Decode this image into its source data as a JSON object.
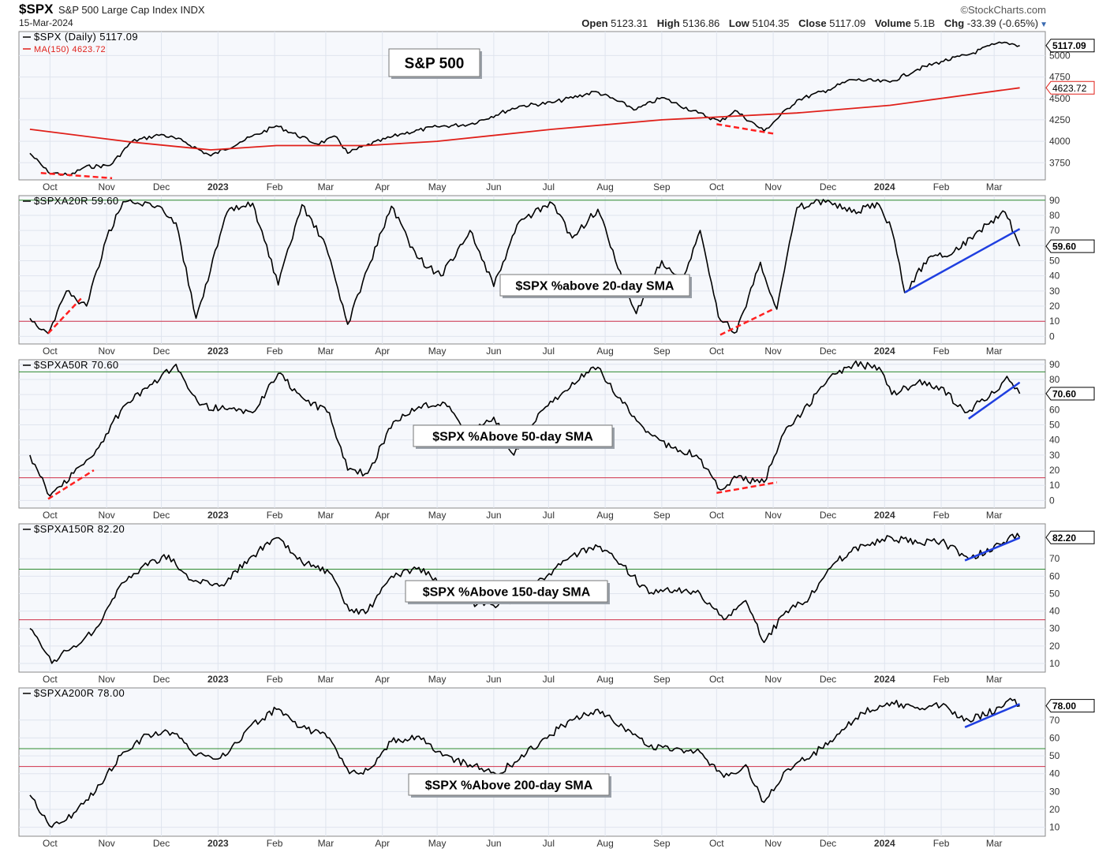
{
  "header": {
    "symbol": "$SPX",
    "name": "S&P 500 Large Cap Index",
    "exchange": "INDX",
    "date": "15-Mar-2024",
    "brand": "©StockCharts.com",
    "open_label": "Open",
    "open": "5123.31",
    "high_label": "High",
    "high": "5136.86",
    "low_label": "Low",
    "low": "5104.35",
    "close_label": "Close",
    "close": "5117.09",
    "volume_label": "Volume",
    "volume": "5.1B",
    "chg_label": "Chg",
    "chg": "-33.39 (-0.65%)"
  },
  "colors": {
    "price_line": "#000000",
    "ma_line": "#e0201a",
    "upper_ref": "#2e8b2e",
    "lower_ref": "#d0304a",
    "annotation_red": "#ff2020",
    "annotation_blue": "#1f3fe0",
    "panel_bg": "#f6f8fc",
    "grid": "#dfe4ee"
  },
  "x_months": [
    "Oct",
    "Nov",
    "Dec",
    "2023",
    "Feb",
    "Mar",
    "Apr",
    "May",
    "Jun",
    "Jul",
    "Aug",
    "Sep",
    "Oct",
    "Nov",
    "Dec",
    "2024",
    "Feb",
    "Mar"
  ],
  "x_month_bold": [
    false,
    false,
    false,
    true,
    false,
    false,
    false,
    false,
    false,
    false,
    false,
    false,
    false,
    false,
    false,
    true,
    false,
    false
  ],
  "chart_data": [
    {
      "type": "line",
      "panel": "price",
      "legend": [
        "$SPX (Daily) 5117.09",
        "MA(150) 4623.72"
      ],
      "annotation": "S&P 500",
      "ylim": [
        3550,
        5280
      ],
      "y_ticks": [
        3750,
        4000,
        4250,
        4500,
        4750,
        5000
      ],
      "y_tick_labels": [
        "3750",
        "4000",
        "4250",
        "4500",
        "4750",
        "5000"
      ],
      "last_value_labels": [
        "5117.09",
        "4623.72"
      ],
      "grid": true,
      "series": [
        {
          "name": "$SPX (Daily)",
          "x": [
            "2022-09-20",
            "2022-09-30",
            "2022-10-12",
            "2022-10-20",
            "2022-11-03",
            "2022-11-15",
            "2022-12-01",
            "2022-12-13",
            "2022-12-28",
            "2023-01-13",
            "2023-02-02",
            "2023-02-24",
            "2023-03-07",
            "2023-03-13",
            "2023-03-23",
            "2023-04-12",
            "2023-05-01",
            "2023-05-19",
            "2023-06-15",
            "2023-07-03",
            "2023-07-27",
            "2023-08-18",
            "2023-09-01",
            "2023-09-21",
            "2023-10-03",
            "2023-10-11",
            "2023-10-27",
            "2023-11-14",
            "2023-12-01",
            "2023-12-14",
            "2024-01-04",
            "2024-01-19",
            "2024-02-01",
            "2024-02-16",
            "2024-03-01",
            "2024-03-08",
            "2024-03-15"
          ],
          "values": [
            3860,
            3640,
            3600,
            3700,
            3720,
            4000,
            4080,
            4000,
            3830,
            3990,
            4180,
            3970,
            4050,
            3860,
            3950,
            4090,
            4170,
            4200,
            4410,
            4450,
            4580,
            4370,
            4510,
            4330,
            4230,
            4360,
            4120,
            4480,
            4600,
            4720,
            4690,
            4840,
            4930,
            5010,
            5130,
            5150,
            5117
          ]
        },
        {
          "name": "MA(150)",
          "x": [
            "2022-09-20",
            "2022-11-15",
            "2022-12-28",
            "2023-02-02",
            "2023-03-23",
            "2023-05-01",
            "2023-07-03",
            "2023-09-01",
            "2023-11-14",
            "2024-01-04",
            "2024-03-15"
          ],
          "values": [
            4140,
            3990,
            3900,
            3950,
            3950,
            4000,
            4140,
            4250,
            4330,
            4420,
            4624
          ]
        }
      ]
    },
    {
      "type": "line",
      "panel": "osc",
      "legend": [
        "$SPXA20R 59.60"
      ],
      "annotation": "$SPX %above 20-day SMA",
      "ylim": [
        -5,
        93
      ],
      "y_ticks": [
        0,
        10,
        20,
        30,
        40,
        50,
        60,
        70,
        80,
        90
      ],
      "y_tick_labels": [
        "0",
        "10",
        "20",
        "30",
        "40",
        "50",
        "60",
        "70",
        "80",
        "90"
      ],
      "ref_lines": [
        90,
        10
      ],
      "last_value_labels": [
        "59.60"
      ],
      "trend_lines": [
        {
          "color": "red",
          "dashed": true,
          "x": [
            "2022-09-30",
            "2022-10-18"
          ],
          "values": [
            2,
            25
          ]
        },
        {
          "color": "red",
          "dashed": true,
          "x": [
            "2023-10-03",
            "2023-11-01"
          ],
          "values": [
            1,
            18
          ]
        },
        {
          "color": "blue",
          "dashed": false,
          "x": [
            "2024-01-12",
            "2024-03-15"
          ],
          "values": [
            29,
            71
          ]
        }
      ],
      "grid": true,
      "series": [
        {
          "name": "$SPXA20R",
          "x": [
            "2022-09-20",
            "2022-09-30",
            "2022-10-10",
            "2022-10-21",
            "2022-11-01",
            "2022-11-10",
            "2022-11-30",
            "2022-12-09",
            "2022-12-20",
            "2023-01-06",
            "2023-01-20",
            "2023-02-03",
            "2023-02-16",
            "2023-03-01",
            "2023-03-13",
            "2023-03-24",
            "2023-04-06",
            "2023-04-20",
            "2023-05-03",
            "2023-05-19",
            "2023-06-01",
            "2023-06-15",
            "2023-07-03",
            "2023-07-14",
            "2023-07-28",
            "2023-08-08",
            "2023-08-18",
            "2023-09-01",
            "2023-09-12",
            "2023-09-22",
            "2023-10-02",
            "2023-10-12",
            "2023-10-25",
            "2023-11-03",
            "2023-11-14",
            "2023-12-01",
            "2023-12-14",
            "2023-12-29",
            "2024-01-05",
            "2024-01-12",
            "2024-01-25",
            "2024-02-08",
            "2024-02-22",
            "2024-03-07",
            "2024-03-15"
          ],
          "values": [
            12,
            2,
            30,
            20,
            65,
            89,
            86,
            75,
            12,
            82,
            88,
            34,
            87,
            60,
            8,
            45,
            86,
            52,
            40,
            70,
            33,
            76,
            88,
            65,
            84,
            45,
            15,
            50,
            35,
            70,
            13,
            3,
            49,
            18,
            85,
            90,
            82,
            87,
            70,
            29,
            52,
            56,
            70,
            82,
            59.6
          ]
        }
      ]
    },
    {
      "type": "line",
      "panel": "osc",
      "legend": [
        "$SPXA50R 70.60"
      ],
      "annotation": "$SPX %Above 50-day SMA",
      "ylim": [
        -5,
        93
      ],
      "y_ticks": [
        0,
        10,
        20,
        30,
        40,
        50,
        60,
        70,
        80,
        90
      ],
      "y_tick_labels": [
        "0",
        "10",
        "20",
        "30",
        "40",
        "50",
        "60",
        "70",
        "80",
        "90"
      ],
      "ref_lines": [
        85,
        15
      ],
      "last_value_labels": [
        "70.60"
      ],
      "trend_lines": [
        {
          "color": "red",
          "dashed": true,
          "x": [
            "2022-09-30",
            "2022-10-25"
          ],
          "values": [
            1,
            20
          ]
        },
        {
          "color": "red",
          "dashed": true,
          "x": [
            "2023-10-01",
            "2023-11-03"
          ],
          "values": [
            5,
            12
          ]
        },
        {
          "color": "blue",
          "dashed": false,
          "x": [
            "2024-02-16",
            "2024-03-15"
          ],
          "values": [
            54,
            78
          ]
        }
      ],
      "grid": true,
      "series": [
        {
          "name": "$SPXA50R",
          "x": [
            "2022-09-20",
            "2022-10-01",
            "2022-10-14",
            "2022-10-25",
            "2022-11-10",
            "2022-11-30",
            "2022-12-09",
            "2022-12-22",
            "2023-01-06",
            "2023-01-20",
            "2023-02-03",
            "2023-02-17",
            "2023-03-03",
            "2023-03-13",
            "2023-03-24",
            "2023-04-07",
            "2023-04-21",
            "2023-05-04",
            "2023-05-19",
            "2023-06-01",
            "2023-06-12",
            "2023-06-28",
            "2023-07-14",
            "2023-07-28",
            "2023-08-08",
            "2023-08-22",
            "2023-09-06",
            "2023-09-20",
            "2023-10-03",
            "2023-10-12",
            "2023-10-27",
            "2023-11-07",
            "2023-11-17",
            "2023-12-01",
            "2023-12-15",
            "2023-12-29",
            "2024-01-05",
            "2024-01-19",
            "2024-02-01",
            "2024-02-14",
            "2024-03-01",
            "2024-03-08",
            "2024-03-15"
          ],
          "values": [
            30,
            3,
            18,
            30,
            62,
            80,
            90,
            63,
            60,
            58,
            84,
            67,
            58,
            20,
            18,
            52,
            62,
            65,
            45,
            55,
            30,
            60,
            78,
            88,
            68,
            48,
            35,
            30,
            7,
            15,
            12,
            45,
            58,
            80,
            90,
            88,
            70,
            78,
            75,
            58,
            71,
            82,
            70.6
          ]
        }
      ]
    },
    {
      "type": "line",
      "panel": "osc",
      "legend": [
        "$SPXA150R 82.20"
      ],
      "annotation": "$SPX %Above 150-day SMA",
      "ylim": [
        5,
        90
      ],
      "y_ticks": [
        10,
        20,
        30,
        40,
        50,
        60,
        70
      ],
      "y_tick_labels": [
        "10",
        "20",
        "30",
        "40",
        "50",
        "60",
        "70"
      ],
      "ref_lines": [
        64,
        35
      ],
      "last_value_labels": [
        "82.20"
      ],
      "trend_lines": [
        {
          "color": "blue",
          "dashed": false,
          "x": [
            "2024-02-14",
            "2024-03-15"
          ],
          "values": [
            69,
            82
          ]
        }
      ],
      "grid": true,
      "series": [
        {
          "name": "$SPXA150R",
          "x": [
            "2022-09-20",
            "2022-10-02",
            "2022-10-14",
            "2022-10-25",
            "2022-11-08",
            "2022-11-21",
            "2022-12-05",
            "2022-12-16",
            "2023-01-03",
            "2023-01-18",
            "2023-02-02",
            "2023-02-16",
            "2023-03-03",
            "2023-03-14",
            "2023-03-24",
            "2023-04-06",
            "2023-04-21",
            "2023-05-04",
            "2023-05-19",
            "2023-06-02",
            "2023-06-15",
            "2023-06-30",
            "2023-07-14",
            "2023-07-28",
            "2023-08-11",
            "2023-08-25",
            "2023-09-08",
            "2023-09-22",
            "2023-10-05",
            "2023-10-17",
            "2023-10-27",
            "2023-11-08",
            "2023-11-21",
            "2023-12-05",
            "2023-12-20",
            "2024-01-05",
            "2024-01-19",
            "2024-02-01",
            "2024-02-16",
            "2024-03-05",
            "2024-03-11",
            "2024-03-15"
          ],
          "values": [
            30,
            10,
            20,
            28,
            54,
            66,
            72,
            58,
            55,
            70,
            82,
            68,
            62,
            40,
            40,
            60,
            65,
            55,
            45,
            42,
            48,
            60,
            72,
            77,
            66,
            50,
            52,
            50,
            35,
            46,
            22,
            40,
            48,
            68,
            78,
            82,
            79,
            80,
            70,
            78,
            84,
            82.2
          ]
        }
      ]
    },
    {
      "type": "line",
      "panel": "osc",
      "legend": [
        "$SPXA200R 78.00"
      ],
      "annotation": "$SPX %Above 200-day SMA",
      "ylim": [
        5,
        88
      ],
      "y_ticks": [
        10,
        20,
        30,
        40,
        50,
        60,
        70
      ],
      "y_tick_labels": [
        "10",
        "20",
        "30",
        "40",
        "50",
        "60",
        "70"
      ],
      "ref_lines": [
        54,
        44
      ],
      "last_value_labels": [
        "78.00"
      ],
      "trend_lines": [
        {
          "color": "blue",
          "dashed": false,
          "x": [
            "2024-02-14",
            "2024-03-15"
          ],
          "values": [
            66,
            79
          ]
        }
      ],
      "grid": true,
      "series": [
        {
          "name": "$SPXA200R",
          "x": [
            "2022-09-20",
            "2022-10-02",
            "2022-10-14",
            "2022-10-26",
            "2022-11-10",
            "2022-11-24",
            "2022-12-07",
            "2022-12-20",
            "2023-01-05",
            "2023-01-19",
            "2023-02-02",
            "2023-02-16",
            "2023-03-03",
            "2023-03-14",
            "2023-03-24",
            "2023-04-06",
            "2023-04-21",
            "2023-05-04",
            "2023-05-19",
            "2023-06-02",
            "2023-06-15",
            "2023-06-29",
            "2023-07-14",
            "2023-07-28",
            "2023-08-11",
            "2023-08-25",
            "2023-09-08",
            "2023-09-22",
            "2023-10-05",
            "2023-10-17",
            "2023-10-27",
            "2023-11-08",
            "2023-11-22",
            "2023-12-06",
            "2023-12-20",
            "2024-01-05",
            "2024-01-19",
            "2024-02-01",
            "2024-02-16",
            "2024-03-05",
            "2024-03-11",
            "2024-03-15"
          ],
          "values": [
            28,
            10,
            18,
            30,
            52,
            62,
            63,
            50,
            50,
            67,
            76,
            66,
            60,
            40,
            42,
            58,
            61,
            50,
            45,
            40,
            48,
            60,
            70,
            76,
            66,
            55,
            54,
            52,
            38,
            45,
            24,
            42,
            50,
            62,
            74,
            80,
            77,
            78,
            70,
            77,
            81,
            78.0
          ]
        }
      ]
    }
  ]
}
